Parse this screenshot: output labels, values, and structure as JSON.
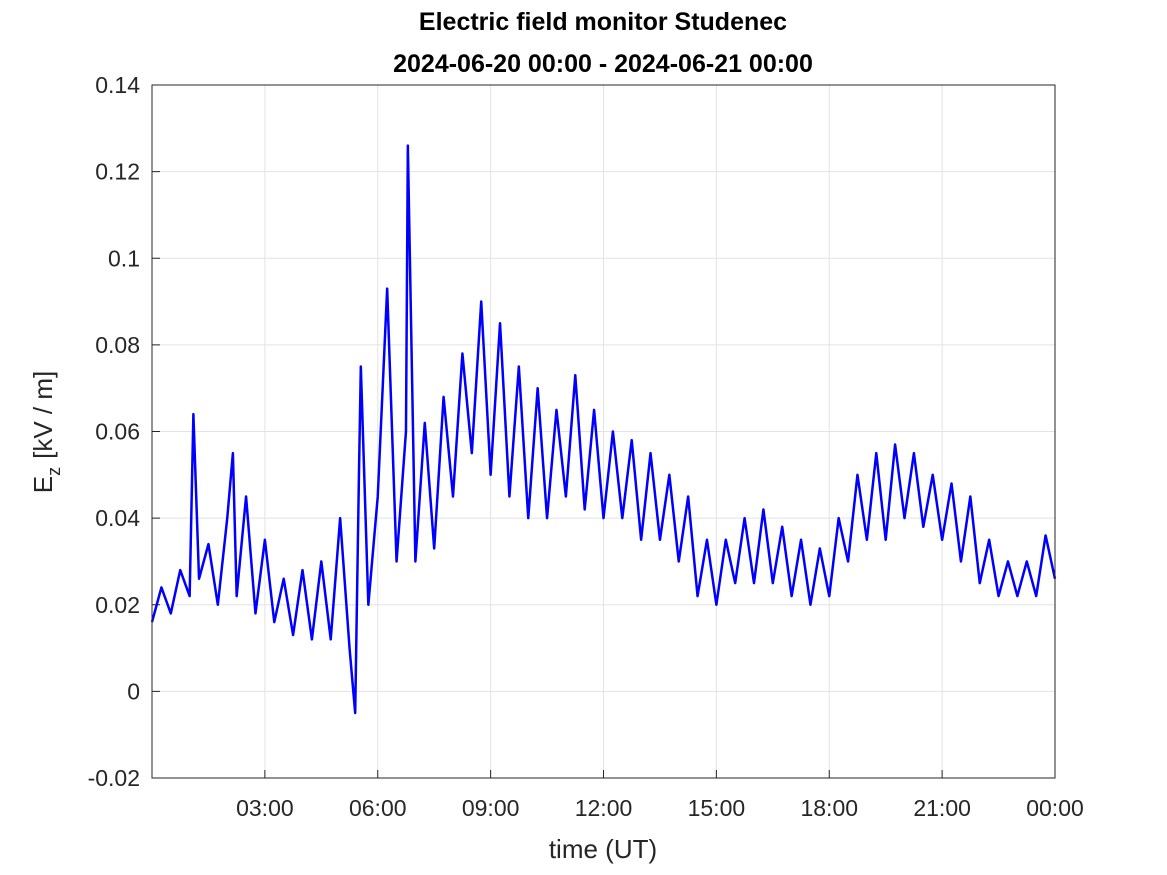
{
  "chart_data": {
    "type": "line",
    "title": "Electric field monitor Studenec",
    "subtitle": "2024-06-20 00:00 - 2024-06-21 00:00",
    "xlabel": "time (UT)",
    "ylabel_symbol": "E",
    "ylabel_subscript": "z",
    "ylabel_unit": "[kV / m]",
    "xlim": [
      0,
      24
    ],
    "xticks": [
      {
        "value": 3,
        "label": "03:00"
      },
      {
        "value": 6,
        "label": "06:00"
      },
      {
        "value": 9,
        "label": "09:00"
      },
      {
        "value": 12,
        "label": "12:00"
      },
      {
        "value": 15,
        "label": "15:00"
      },
      {
        "value": 18,
        "label": "18:00"
      },
      {
        "value": 21,
        "label": "21:00"
      },
      {
        "value": 24,
        "label": "00:00"
      }
    ],
    "ylim": [
      -0.02,
      0.14
    ],
    "yticks": [
      -0.02,
      0,
      0.02,
      0.04,
      0.06,
      0.08,
      0.1,
      0.12,
      0.14
    ],
    "grid": true,
    "series": [
      {
        "color": "#0000ff",
        "x": [
          0,
          0.25,
          0.5,
          0.75,
          1.0,
          1.1,
          1.25,
          1.5,
          1.75,
          2.0,
          2.15,
          2.25,
          2.5,
          2.75,
          3.0,
          3.25,
          3.5,
          3.75,
          4.0,
          4.25,
          4.5,
          4.75,
          5.0,
          5.25,
          5.4,
          5.5,
          5.55,
          5.75,
          6.0,
          6.25,
          6.5,
          6.75,
          6.8,
          7.0,
          7.25,
          7.5,
          7.75,
          8.0,
          8.25,
          8.5,
          8.75,
          9.0,
          9.25,
          9.5,
          9.75,
          10.0,
          10.25,
          10.5,
          10.75,
          11.0,
          11.25,
          11.5,
          11.75,
          12.0,
          12.25,
          12.5,
          12.75,
          13.0,
          13.25,
          13.5,
          13.75,
          14.0,
          14.25,
          14.5,
          14.75,
          15.0,
          15.25,
          15.5,
          15.75,
          16.0,
          16.25,
          16.5,
          16.75,
          17.0,
          17.25,
          17.5,
          17.75,
          18.0,
          18.25,
          18.5,
          18.75,
          19.0,
          19.25,
          19.5,
          19.75,
          20.0,
          20.25,
          20.5,
          20.75,
          21.0,
          21.25,
          21.5,
          21.75,
          22.0,
          22.25,
          22.5,
          22.75,
          23.0,
          23.25,
          23.5,
          23.75,
          24.0
        ],
        "values": [
          0.016,
          0.024,
          0.018,
          0.028,
          0.022,
          0.064,
          0.026,
          0.034,
          0.02,
          0.04,
          0.055,
          0.022,
          0.045,
          0.018,
          0.035,
          0.016,
          0.026,
          0.013,
          0.028,
          0.012,
          0.03,
          0.012,
          0.04,
          0.01,
          -0.005,
          0.05,
          0.075,
          0.02,
          0.045,
          0.093,
          0.03,
          0.06,
          0.126,
          0.03,
          0.062,
          0.033,
          0.068,
          0.045,
          0.078,
          0.055,
          0.09,
          0.05,
          0.085,
          0.045,
          0.075,
          0.04,
          0.07,
          0.04,
          0.065,
          0.045,
          0.073,
          0.042,
          0.065,
          0.04,
          0.06,
          0.04,
          0.058,
          0.035,
          0.055,
          0.035,
          0.05,
          0.03,
          0.045,
          0.022,
          0.035,
          0.02,
          0.035,
          0.025,
          0.04,
          0.025,
          0.042,
          0.025,
          0.038,
          0.022,
          0.035,
          0.02,
          0.033,
          0.022,
          0.04,
          0.03,
          0.05,
          0.035,
          0.055,
          0.035,
          0.057,
          0.04,
          0.055,
          0.038,
          0.05,
          0.035,
          0.048,
          0.03,
          0.045,
          0.025,
          0.035,
          0.022,
          0.03,
          0.022,
          0.03,
          0.022,
          0.036,
          0.026
        ]
      }
    ]
  }
}
